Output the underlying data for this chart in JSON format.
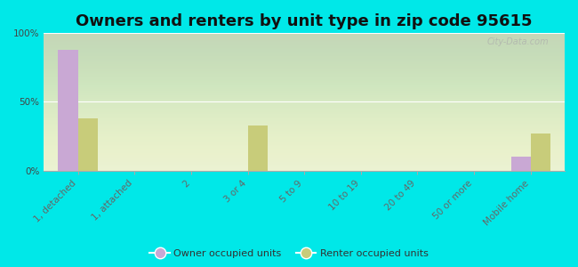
{
  "title": "Owners and renters by unit type in zip code 95615",
  "categories": [
    "1, detached",
    "1, attached",
    "2",
    "3 or 4",
    "5 to 9",
    "10 to 19",
    "20 to 49",
    "50 or more",
    "Mobile home"
  ],
  "owner_values": [
    88,
    0,
    0,
    0,
    0,
    0,
    0,
    0,
    10
  ],
  "renter_values": [
    38,
    0,
    0,
    33,
    0,
    0,
    0,
    0,
    27
  ],
  "owner_color": "#c9a8d4",
  "renter_color": "#c8cc7a",
  "background_color": "#00e8e8",
  "plot_bg_color": "#e8f0d0",
  "ylim": [
    0,
    100
  ],
  "yticks": [
    0,
    50,
    100
  ],
  "ytick_labels": [
    "0%",
    "50%",
    "100%"
  ],
  "bar_width": 0.35,
  "legend_owner": "Owner occupied units",
  "legend_renter": "Renter occupied units",
  "title_fontsize": 13,
  "tick_fontsize": 7.5,
  "watermark": "City-Data.com"
}
